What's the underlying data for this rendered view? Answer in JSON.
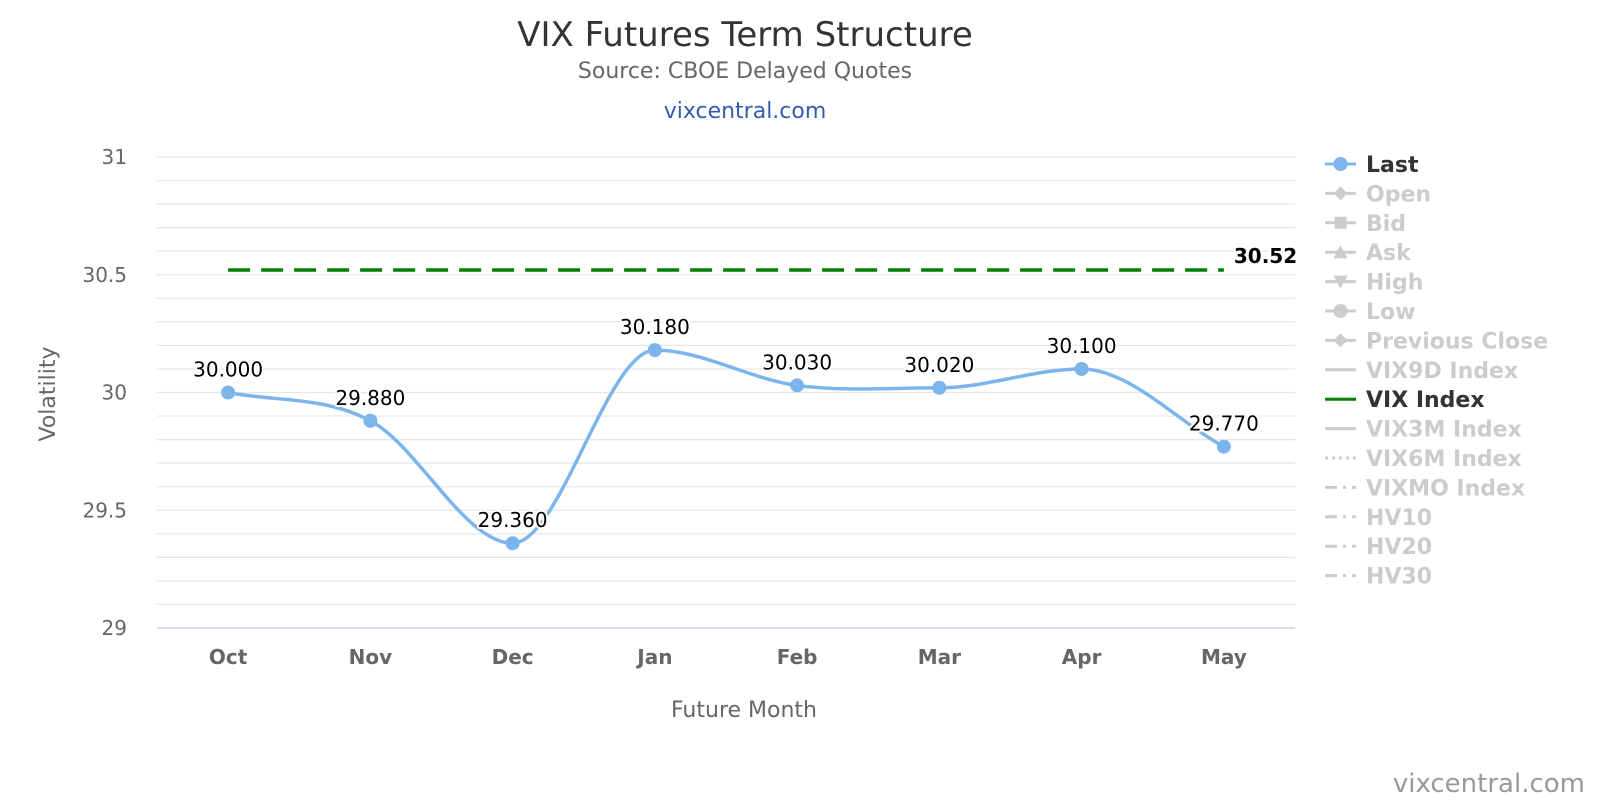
{
  "header": {
    "title": "VIX Futures Term Structure",
    "subtitle": "Source: CBOE Delayed Quotes",
    "site_link": "vixcentral.com"
  },
  "credit": "vixcentral.com",
  "colors": {
    "last_series": "#7cb5ec",
    "vix_index": "#008000",
    "legend_active": "#333333",
    "legend_inactive": "#cccccc",
    "grid": "#e6e6e6"
  },
  "chart_data": {
    "type": "line",
    "xlabel": "Future Month",
    "ylabel": "Volatility",
    "categories": [
      "Oct",
      "Nov",
      "Dec",
      "Jan",
      "Feb",
      "Mar",
      "Apr",
      "May"
    ],
    "ylim": [
      29,
      31
    ],
    "y_ticks": [
      "29",
      "29.5",
      "30",
      "30.5",
      "31"
    ],
    "grid": true,
    "legend_position": "right",
    "series": [
      {
        "name": "Last",
        "style": "spline-with-markers",
        "values": [
          30.0,
          29.88,
          29.36,
          30.18,
          30.03,
          30.02,
          30.1,
          29.77
        ],
        "labels": [
          "30.000",
          "29.880",
          "29.360",
          "30.180",
          "30.030",
          "30.020",
          "30.100",
          "29.770"
        ]
      },
      {
        "name": "VIX Index",
        "style": "dashed",
        "value": 30.52,
        "label": "30.52"
      }
    ],
    "legend": [
      {
        "name": "Last",
        "active": true,
        "symbol": "line-circle"
      },
      {
        "name": "Open",
        "active": false,
        "symbol": "line-diamond"
      },
      {
        "name": "Bid",
        "active": false,
        "symbol": "line-square"
      },
      {
        "name": "Ask",
        "active": false,
        "symbol": "line-triangle"
      },
      {
        "name": "High",
        "active": false,
        "symbol": "line-triangle-down"
      },
      {
        "name": "Low",
        "active": false,
        "symbol": "line-circle"
      },
      {
        "name": "Previous Close",
        "active": false,
        "symbol": "line-diamond"
      },
      {
        "name": "VIX9D Index",
        "active": false,
        "symbol": "line-solid"
      },
      {
        "name": "VIX Index",
        "active": true,
        "symbol": "line-solid"
      },
      {
        "name": "VIX3M Index",
        "active": false,
        "symbol": "line-solid"
      },
      {
        "name": "VIX6M Index",
        "active": false,
        "symbol": "line-dotted"
      },
      {
        "name": "VIXMO Index",
        "active": false,
        "symbol": "line-dashdot"
      },
      {
        "name": "HV10",
        "active": false,
        "symbol": "line-dashdot"
      },
      {
        "name": "HV20",
        "active": false,
        "symbol": "line-dashdot"
      },
      {
        "name": "HV30",
        "active": false,
        "symbol": "line-dashdot"
      }
    ]
  }
}
